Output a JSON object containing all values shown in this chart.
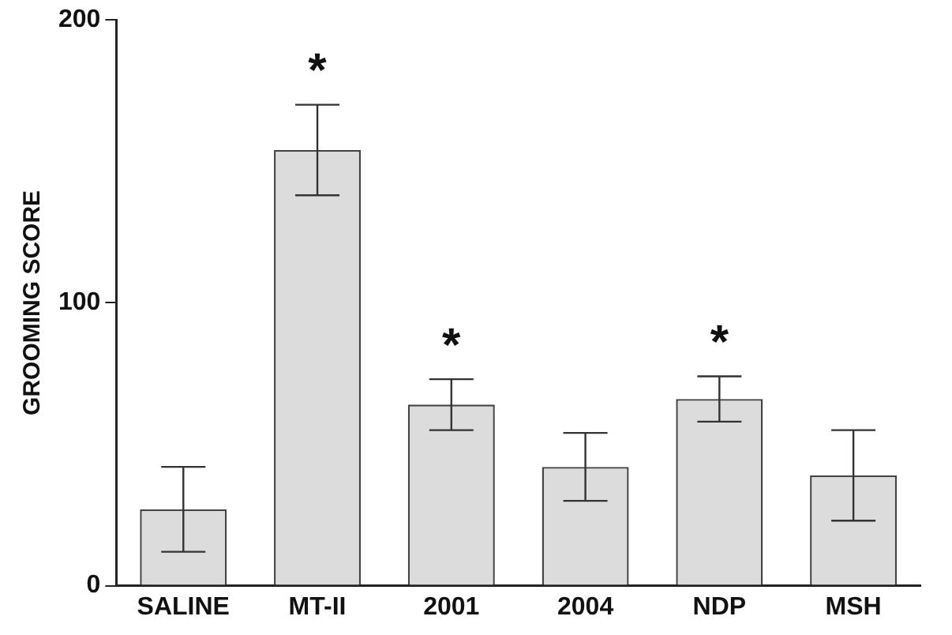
{
  "chart_data": {
    "type": "bar",
    "ylabel": "GROOMING SCORE",
    "categories": [
      "SALINE",
      "MT-II",
      "2001",
      "2004",
      "NDP",
      "MSH"
    ],
    "values": [
      27,
      154,
      64,
      42,
      66,
      39
    ],
    "errors": [
      15,
      16,
      9,
      12,
      8,
      16
    ],
    "color": "#dcdcdc",
    "ylim": [
      0,
      200
    ],
    "yticks": [
      0,
      100,
      200
    ],
    "grid": false,
    "legend": false,
    "annotations": [
      {
        "text": "*",
        "x": "MT-II",
        "y": 170
      },
      {
        "text": "*",
        "x": "2001",
        "y": 73
      },
      {
        "text": "*",
        "x": "NDP",
        "y": 74
      }
    ]
  }
}
